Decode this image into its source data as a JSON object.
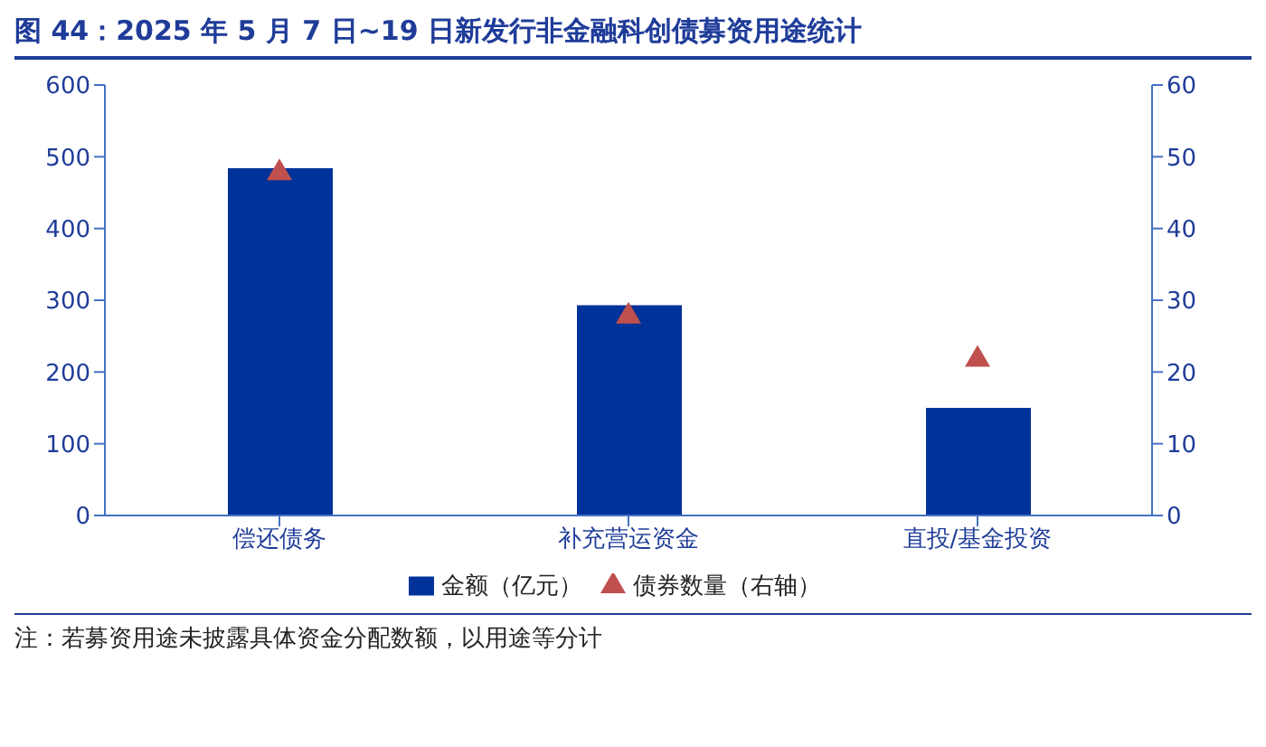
{
  "chart_data": {
    "type": "bar",
    "title": "图 44：2025 年 5 月 7 日~19 日新发行非金融科创债募资用途统计",
    "categories": [
      "偿还债务",
      "补充营运资金",
      "直投/基金投资"
    ],
    "series": [
      {
        "name": "金额（亿元）",
        "color": "#003399",
        "values": [
          484,
          293,
          150
        ]
      },
      {
        "name": "债券数量（右轴）",
        "type": "scatter",
        "axis": "y2",
        "color": "#c0504d",
        "values": [
          48,
          28,
          22
        ]
      }
    ],
    "ylim": [
      0,
      600
    ],
    "yticks": [
      0,
      100,
      200,
      300,
      400,
      500,
      600
    ],
    "y2lim": [
      0,
      60
    ],
    "y2ticks": [
      0,
      10,
      20,
      30,
      40,
      50,
      60
    ],
    "marker": "triangle",
    "legend": "bottom",
    "grid": false,
    "annotations": [
      "注：若募资用途未披露具体资金分配数额，以用途等分计"
    ]
  }
}
